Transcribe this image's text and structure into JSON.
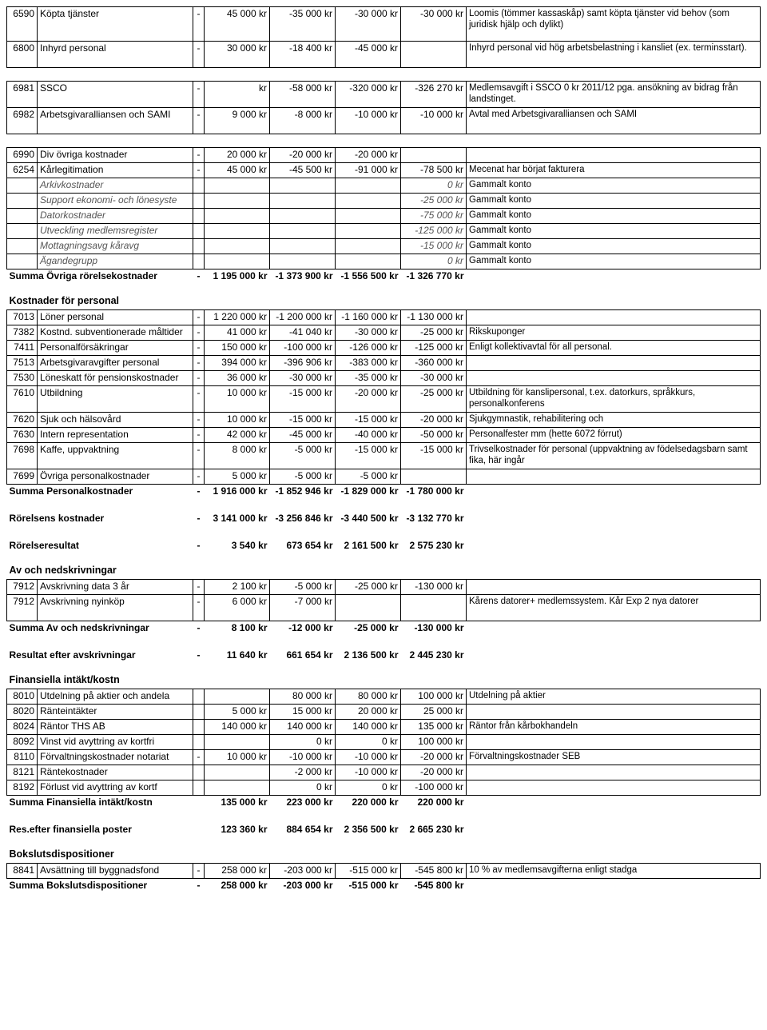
{
  "cols": {
    "code_w": 38,
    "desc_w": 195,
    "dash_w": 14,
    "num_w": 82
  },
  "sections": [
    {
      "rows": [
        {
          "code": "6590",
          "desc": "Köpta tjänster",
          "dash": "-",
          "c1": "45 000 kr",
          "c2": "-35 000 kr",
          "c3": "-30 000 kr",
          "c4": "-30 000 kr",
          "note": "Loomis (tömmer kassaskåp) samt köpta tjänster vid behov (som juridisk hjälp och dylikt)",
          "tall": true
        },
        {
          "code": "6800",
          "desc": "Inhyrd personal",
          "dash": "-",
          "c1": "30 000 kr",
          "c2": "-18 400 kr",
          "c3": "-45 000 kr",
          "c4": "",
          "note": "Inhyrd personal vid hög arbetsbelastning i kansliet (ex. terminsstart).",
          "tall2": true
        }
      ]
    },
    {
      "spacer": true
    },
    {
      "rows": [
        {
          "code": "6981",
          "desc": "SSCO",
          "dash": "-",
          "c1": "kr",
          "c2": "-58 000 kr",
          "c3": "-320 000 kr",
          "c4": "-326 270 kr",
          "note": "Medlemsavgift i SSCO 0 kr 2011/12 pga. ansökning av bidrag från landstinget.",
          "tall2": true
        },
        {
          "code": "6982",
          "desc": "Arbetsgivaralliansen och SAMI",
          "dash": "-",
          "c1": "9 000 kr",
          "c2": "-8 000 kr",
          "c3": "-10 000 kr",
          "c4": "-10 000 kr",
          "note": "Avtal med Arbetsgivaralliansen och SAMI",
          "tall2": true
        }
      ]
    },
    {
      "spacer": true
    },
    {
      "rows": [
        {
          "code": "6990",
          "desc": "Div övriga kostnader",
          "dash": "-",
          "c1": "20 000 kr",
          "c2": "-20 000 kr",
          "c3": "-20 000 kr",
          "c4": "",
          "note": ""
        },
        {
          "code": "6254",
          "desc": "Kårlegitimation",
          "dash": "-",
          "c1": "45 000 kr",
          "c2": "-45 500 kr",
          "c3": "-91 000 kr",
          "c4": "-78 500 kr",
          "note": "Mecenat har börjat fakturera"
        },
        {
          "code": "",
          "desc": "Arkivkostnader",
          "ital": true,
          "dash": "",
          "c1": "",
          "c2": "",
          "c3": "",
          "c4": "0 kr",
          "note": "Gammalt konto",
          "noteItal": false
        },
        {
          "code": "",
          "desc": "Support ekonomi- och lönesyste",
          "ital": true,
          "dash": "",
          "c1": "",
          "c2": "",
          "c3": "",
          "c4": "-25 000 kr",
          "note": "Gammalt konto"
        },
        {
          "code": "",
          "desc": "Datorkostnader",
          "ital": true,
          "dash": "",
          "c1": "",
          "c2": "",
          "c3": "",
          "c4": "-75 000 kr",
          "note": "Gammalt konto"
        },
        {
          "code": "",
          "desc": "Utveckling medlemsregister",
          "ital": true,
          "dash": "",
          "c1": "",
          "c2": "",
          "c3": "",
          "c4": "-125 000 kr",
          "note": "Gammalt konto"
        },
        {
          "code": "",
          "desc": "Mottagningsavg kåravg",
          "ital": true,
          "dash": "",
          "c1": "",
          "c2": "",
          "c3": "",
          "c4": "-15 000 kr",
          "note": "Gammalt konto"
        },
        {
          "code": "",
          "desc": "Ägandegrupp",
          "ital": true,
          "dash": "",
          "c1": "",
          "c2": "",
          "c3": "",
          "c4": "0 kr",
          "note": "Gammalt konto"
        }
      ],
      "sum": {
        "label": "Summa Övriga rörelsekostnader",
        "dash": "-",
        "c1": "1 195 000 kr",
        "c2": "-1 373 900 kr",
        "c3": "-1 556 500 kr",
        "c4": "-1 326 770 kr"
      }
    },
    {
      "title": "Kostnader för personal"
    },
    {
      "rows": [
        {
          "code": "7013",
          "desc": "Löner personal",
          "dash": "-",
          "c1": "1 220 000 kr",
          "c2": "-1 200 000 kr",
          "c3": "-1 160 000 kr",
          "c4": "-1 130 000 kr",
          "note": ""
        },
        {
          "code": "7382",
          "desc": "Kostnd. subventionerade måltider",
          "dash": "-",
          "c1": "41 000 kr",
          "c2": "-41 040 kr",
          "c3": "-30 000 kr",
          "c4": "-25 000 kr",
          "note": "Rikskuponger"
        },
        {
          "code": "7411",
          "desc": "Personalförsäkringar",
          "dash": "-",
          "c1": "150 000 kr",
          "c2": "-100 000 kr",
          "c3": "-126 000 kr",
          "c4": "-125 000 kr",
          "note": "Enligt kollektivavtal för all personal."
        },
        {
          "code": "7513",
          "desc": "Arbetsgivaravgifter personal",
          "dash": "-",
          "c1": "394 000 kr",
          "c2": "-396 906 kr",
          "c3": "-383 000 kr",
          "c4": "-360 000 kr",
          "note": ""
        },
        {
          "code": "7530",
          "desc": "Löneskatt för pensionskostnader",
          "dash": "-",
          "c1": "36 000 kr",
          "c2": "-30 000 kr",
          "c3": "-35 000 kr",
          "c4": "-30 000 kr",
          "note": ""
        },
        {
          "code": "7610",
          "desc": "Utbildning",
          "dash": "-",
          "c1": "10 000 kr",
          "c2": "-15 000 kr",
          "c3": "-20 000 kr",
          "c4": "-25 000 kr",
          "note": "Utbildning för kanslipersonal, t.ex. datorkurs, språkkurs, personalkonferens",
          "tall2": true
        },
        {
          "code": "7620",
          "desc": "Sjuk och hälsovård",
          "dash": "-",
          "c1": "10 000 kr",
          "c2": "-15 000 kr",
          "c3": "-15 000 kr",
          "c4": "-20 000 kr",
          "note": "Sjukgymnastik, rehabilitering och"
        },
        {
          "code": "7630",
          "desc": "Intern representation",
          "dash": "-",
          "c1": "42 000 kr",
          "c2": "-45 000 kr",
          "c3": "-40 000 kr",
          "c4": "-50 000 kr",
          "note": "Personalfester mm (hette 6072 förrut)"
        },
        {
          "code": "7698",
          "desc": "Kaffe, uppvaktning",
          "dash": "-",
          "c1": "8 000 kr",
          "c2": "-5 000 kr",
          "c3": "-15 000 kr",
          "c4": "-15 000 kr",
          "note": "Trivselkostnader för personal (uppvaktning av födelsedagsbarn samt fika, här ingår",
          "tall2": true
        },
        {
          "code": "7699",
          "desc": "Övriga personalkostnader",
          "dash": "-",
          "c1": "5 000 kr",
          "c2": "-5 000 kr",
          "c3": "-5 000 kr",
          "c4": "",
          "note": ""
        }
      ],
      "sum": {
        "label": "Summa Personalkostnader",
        "dash": "-",
        "c1": "1 916 000 kr",
        "c2": "-1 852 946 kr",
        "c3": "-1 829 000 kr",
        "c4": "-1 780 000 kr"
      }
    },
    {
      "spacer": true
    },
    {
      "sumOnly": {
        "label": "Rörelsens kostnader",
        "dash": "-",
        "c1": "3 141 000 kr",
        "c2": "-3 256 846 kr",
        "c3": "-3 440 500 kr",
        "c4": "-3 132 770 kr"
      }
    },
    {
      "spacer": true
    },
    {
      "sumOnly": {
        "label": "Rörelseresultat",
        "dash": "-",
        "c1": "3 540 kr",
        "c2": "673 654 kr",
        "c3": "2 161 500 kr",
        "c4": "2 575 230 kr"
      }
    },
    {
      "title": "Av och nedskrivningar"
    },
    {
      "rows": [
        {
          "code": "7912",
          "desc": "Avskrivning data 3 år",
          "dash": "-",
          "c1": "2 100 kr",
          "c2": "-5 000 kr",
          "c3": "-25 000 kr",
          "c4": "-130 000 kr",
          "note": ""
        },
        {
          "code": "7912",
          "desc": "Avskrivning nyinköp",
          "dash": "-",
          "c1": "6 000 kr",
          "c2": "-7 000 kr",
          "c3": "",
          "c4": "",
          "note": "Kårens datorer+ medlemssystem. Kår Exp 2 nya datorer",
          "tall2": true
        }
      ],
      "sum": {
        "label": "Summa Av och nedskrivningar",
        "dash": "-",
        "c1": "8 100 kr",
        "c2": "-12 000 kr",
        "c3": "-25 000 kr",
        "c4": "-130 000 kr"
      }
    },
    {
      "spacer": true
    },
    {
      "sumOnly": {
        "label": "Resultat efter avskrivningar",
        "dash": "-",
        "c1": "11 640 kr",
        "c2": "661 654 kr",
        "c3": "2 136 500 kr",
        "c4": "2 445 230 kr"
      }
    },
    {
      "title": "Finansiella intäkt/kostn"
    },
    {
      "rows": [
        {
          "code": "8010",
          "desc": "Utdelning på aktier och andela",
          "dash": "",
          "c1": "",
          "c2": "80 000 kr",
          "c3": "80 000 kr",
          "c4": "100 000 kr",
          "note": "Utdelning på aktier"
        },
        {
          "code": "8020",
          "desc": "Ränteintäkter",
          "dash": "",
          "c1": "5 000 kr",
          "c2": "15 000 kr",
          "c3": "20 000 kr",
          "c4": "25 000 kr",
          "note": ""
        },
        {
          "code": "8024",
          "desc": "Räntor THS AB",
          "dash": "",
          "c1": "140 000 kr",
          "c2": "140 000 kr",
          "c3": "140 000 kr",
          "c4": "135 000 kr",
          "note": "Räntor från kårbokhandeln"
        },
        {
          "code": "8092",
          "desc": "Vinst vid avyttring av kortfri",
          "dash": "",
          "c1": "",
          "c2": "0 kr",
          "c3": "0 kr",
          "c4": "100 000 kr",
          "note": ""
        },
        {
          "code": "8110",
          "desc": "Förvaltningskostnader notariat",
          "dash": "-",
          "c1": "10 000 kr",
          "c2": "-10 000 kr",
          "c3": "-10 000 kr",
          "c4": "-20 000 kr",
          "note": "Förvaltningskostnader SEB"
        },
        {
          "code": "8121",
          "desc": "Räntekostnader",
          "dash": "",
          "c1": "",
          "c2": "-2 000 kr",
          "c3": "-10 000 kr",
          "c4": "-20 000 kr",
          "note": ""
        },
        {
          "code": "8192",
          "desc": "Förlust vid avyttring av kortf",
          "dash": "",
          "c1": "",
          "c2": "0 kr",
          "c3": "0 kr",
          "c4": "-100 000 kr",
          "note": ""
        }
      ],
      "sum": {
        "label": "Summa Finansiella intäkt/kostn",
        "dash": "",
        "c1": "135 000 kr",
        "c2": "223 000 kr",
        "c3": "220 000 kr",
        "c4": "220 000 kr"
      }
    },
    {
      "spacer": true
    },
    {
      "sumOnly": {
        "label": "Res.efter finansiella poster",
        "dash": "",
        "c1": "123 360 kr",
        "c2": "884 654 kr",
        "c3": "2 356 500 kr",
        "c4": "2 665 230 kr"
      }
    },
    {
      "title": "Bokslutsdispositioner"
    },
    {
      "rows": [
        {
          "code": "8841",
          "desc": "Avsättning till byggnadsfond",
          "dash": "-",
          "c1": "258 000 kr",
          "c2": "-203 000 kr",
          "c3": "-515 000 kr",
          "c4": "-545 800 kr",
          "note": "10 % av medlemsavgifterna enligt stadga"
        }
      ],
      "sum": {
        "label": "Summa Bokslutsdispositioner",
        "dash": "-",
        "c1": "258 000 kr",
        "c2": "-203 000 kr",
        "c3": "-515 000 kr",
        "c4": "-545 800 kr"
      }
    }
  ]
}
